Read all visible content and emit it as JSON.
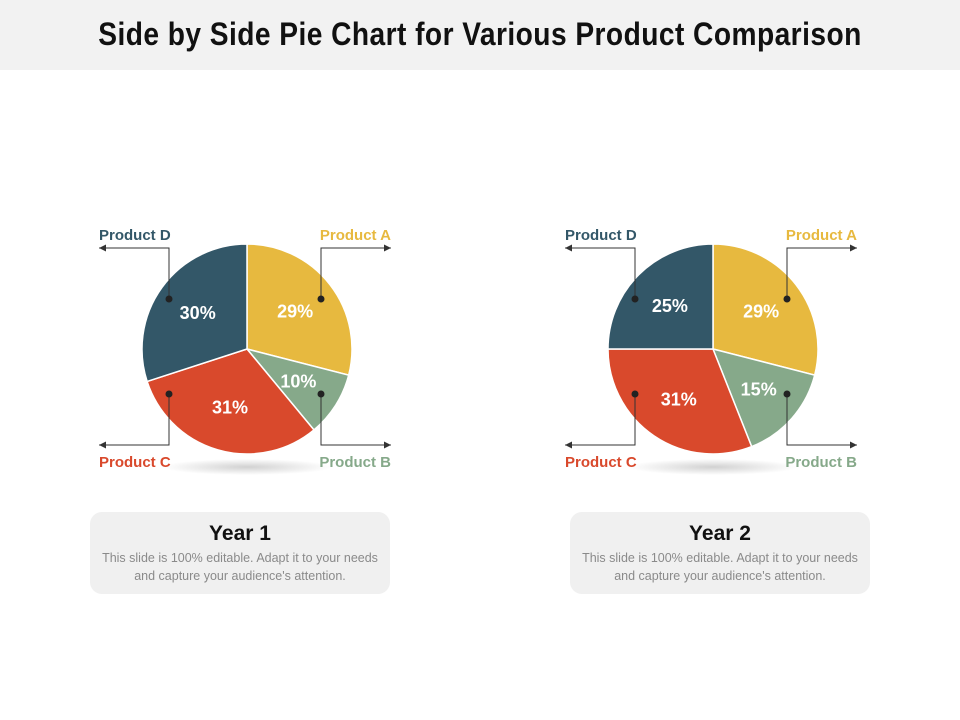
{
  "title": "Side by Side Pie Chart for Various Product Comparison",
  "colors": {
    "product_a": "#e7b93f",
    "product_b": "#86a98a",
    "product_c": "#d9492c",
    "product_d": "#335768"
  },
  "chart_data": [
    {
      "type": "pie",
      "title": "Year 1",
      "description": "This slide is 100% editable. Adapt it to your needs and capture your audience's attention.",
      "slices": [
        {
          "label": "Product A",
          "value": 29,
          "display": "29%"
        },
        {
          "label": "Product B",
          "value": 10,
          "display": "10%"
        },
        {
          "label": "Product C",
          "value": 31,
          "display": "31%"
        },
        {
          "label": "Product D",
          "value": 30,
          "display": "30%"
        }
      ]
    },
    {
      "type": "pie",
      "title": "Year 2",
      "description": "This slide is 100% editable. Adapt it to your needs and capture your audience's attention.",
      "slices": [
        {
          "label": "Product A",
          "value": 29,
          "display": "29%"
        },
        {
          "label": "Product B",
          "value": 15,
          "display": "15%"
        },
        {
          "label": "Product C",
          "value": 31,
          "display": "31%"
        },
        {
          "label": "Product D",
          "value": 25,
          "display": "25%"
        }
      ]
    }
  ]
}
